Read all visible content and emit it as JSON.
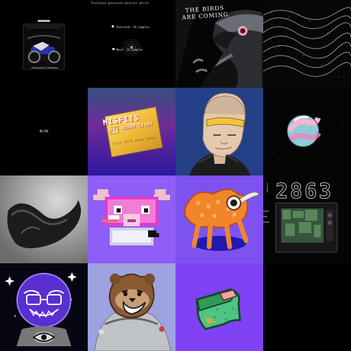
{
  "tiles": [
    {
      "id": "motorcycle-box",
      "caption": "Produced by Peepeesi"
    },
    {
      "id": "terminal-orbit",
      "header": "Pixelmind generated abstract motifs",
      "line1": "Executed: 16 samples",
      "line2": "Next: 12 samples"
    },
    {
      "id": "crow",
      "title_line1": "THE BIRDS",
      "title_line2": "ARE COMING"
    },
    {
      "id": "wave-noise"
    },
    {
      "id": "black-center-text",
      "text": "BLOW"
    },
    {
      "id": "misfits-card",
      "title": "MISFITS",
      "subtitle": "BY: SUNNY LIGHT",
      "number": "1234 5678 9999 0000"
    },
    {
      "id": "bald-man"
    },
    {
      "id": "planet"
    },
    {
      "id": "shell-object"
    },
    {
      "id": "pixel-creature"
    },
    {
      "id": "orange-creature"
    },
    {
      "id": "tv-2863",
      "number": "2863",
      "vertical_text": "VELOCITY"
    },
    {
      "id": "crystal-ball"
    },
    {
      "id": "bear-astronaut"
    },
    {
      "id": "green-sticker"
    }
  ],
  "colors": {
    "background": "#000000",
    "purple": "#8f5df7",
    "violet": "#7e52ef",
    "orange": "#f1852c",
    "yellow": "#ebc04d"
  }
}
